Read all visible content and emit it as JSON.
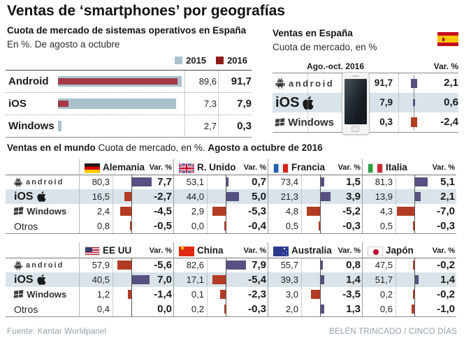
{
  "title": "Ventas de ‘smartphones’ por geografías",
  "colors": {
    "bar_2015": "#aac1cb",
    "bar_2016": "#a43847",
    "legend_2016": "#8f1a1a",
    "var_positive": "#565180",
    "var_negative": "#b23b24",
    "row_highlight": "#d9e3e9"
  },
  "spain_os_chart": {
    "title": "Cuota de mercado de sistemas operativos en España",
    "subtitle": "En %. De agosto a octubre",
    "legend": [
      {
        "label": "2015",
        "color": "#aac1cb"
      },
      {
        "label": "2016",
        "color": "#8f1a1a"
      }
    ],
    "rows": [
      {
        "label": "Android",
        "y2015": 89.6,
        "y2016": 91.7,
        "blue_pct": 100,
        "red_pct": 96.5
      },
      {
        "label": "iOS",
        "y2015": 7.3,
        "y2016": 7.9,
        "blue_pct": 95.5,
        "red_pct": 8.5
      },
      {
        "label": "Windows",
        "y2015": 2.7,
        "y2016": 0.3,
        "blue_pct": 3,
        "red_pct": 0
      }
    ]
  },
  "spain_sales": {
    "title": "Ventas en España",
    "subtitle": "Cuota de mercado, en %",
    "flag": "es",
    "col_period": "Ago.-oct. 2016",
    "col_var": "Var. %",
    "rows": [
      {
        "os": "android",
        "share": 91.7,
        "var": 2.1
      },
      {
        "os": "ios",
        "share": 7.9,
        "var": 0.6
      },
      {
        "os": "windows",
        "share": 0.3,
        "var": -2.4
      }
    ]
  },
  "world": {
    "heading_bold": "Ventas en el mundo",
    "heading_normal": " Cuota de mercado, en %. ",
    "heading_bold2": "Agosto a octubre de 2016",
    "var_label": "Var. %",
    "os_order": [
      "android",
      "ios",
      "windows",
      "otros"
    ],
    "tables": [
      [
        {
          "name": "Alemania",
          "flag": "de",
          "shares": [
            80.3,
            16.5,
            2.4,
            0.8
          ],
          "vars": [
            7.7,
            -2.7,
            -4.5,
            -0.5
          ]
        },
        {
          "name": "R. Unido",
          "flag": "uk",
          "shares": [
            53.1,
            44.0,
            2.9,
            0.0
          ],
          "vars": [
            0.7,
            5.0,
            -5.3,
            -0.4
          ]
        },
        {
          "name": "Francia",
          "flag": "fr",
          "shares": [
            73.4,
            21.3,
            4.8,
            0.5
          ],
          "vars": [
            1.5,
            3.9,
            -5.2,
            -0.3
          ]
        },
        {
          "name": "Italia",
          "flag": "it",
          "shares": [
            81.3,
            13.9,
            4.3,
            0.5
          ],
          "vars": [
            5.1,
            2.1,
            -7.0,
            -0.3
          ]
        }
      ],
      [
        {
          "name": "EE UU",
          "flag": "us",
          "shares": [
            57.9,
            40.5,
            1.2,
            0.4
          ],
          "vars": [
            -5.6,
            7.0,
            -1.4,
            0.0
          ]
        },
        {
          "name": "China",
          "flag": "cn",
          "shares": [
            82.6,
            17.1,
            0.1,
            0.2
          ],
          "vars": [
            7.9,
            -5.4,
            -2.3,
            -0.3
          ]
        },
        {
          "name": "Australia",
          "flag": "au",
          "shares": [
            55.7,
            39.3,
            3.0,
            2.0
          ],
          "vars": [
            0.8,
            1.4,
            -3.5,
            1.3
          ]
        },
        {
          "name": "Japón",
          "flag": "jp",
          "shares": [
            47.5,
            51.7,
            0.2,
            0.6
          ],
          "vars": [
            -0.2,
            1.4,
            -0.2,
            -1.0
          ]
        }
      ]
    ]
  },
  "footer": {
    "source": "Fuente: Kantar Worldpanel",
    "credit": "BELÉN TRINCADO / CINCO DÍAS"
  },
  "chart_data": [
    {
      "type": "bar",
      "orientation": "horizontal",
      "title": "Cuota de mercado de sistemas operativos en España",
      "subtitle": "En %. De agosto a octubre",
      "categories": [
        "Android",
        "iOS",
        "Windows"
      ],
      "series": [
        {
          "name": "2015",
          "values": [
            89.6,
            7.3,
            2.7
          ]
        },
        {
          "name": "2016",
          "values": [
            91.7,
            7.9,
            0.3
          ]
        }
      ],
      "unit": "%",
      "legend_position": "top-right",
      "grid": false
    },
    {
      "type": "table",
      "title": "Ventas en España",
      "subtitle": "Cuota de mercado, en %",
      "columns": [
        "Ago.-oct. 2016",
        "Var. %"
      ],
      "rows": [
        [
          "Android",
          91.7,
          2.1
        ],
        [
          "iOS",
          7.9,
          0.6
        ],
        [
          "Windows",
          0.3,
          -2.4
        ]
      ]
    },
    {
      "type": "table",
      "title": "Ventas en el mundo",
      "subtitle": "Cuota de mercado, en %. Agosto a octubre de 2016",
      "os": [
        "Android",
        "iOS",
        "Windows",
        "Otros"
      ],
      "countries": [
        {
          "name": "Alemania",
          "share": [
            80.3,
            16.5,
            2.4,
            0.8
          ],
          "var": [
            7.7,
            -2.7,
            -4.5,
            -0.5
          ]
        },
        {
          "name": "R. Unido",
          "share": [
            53.1,
            44.0,
            2.9,
            0.0
          ],
          "var": [
            0.7,
            5.0,
            -5.3,
            -0.4
          ]
        },
        {
          "name": "Francia",
          "share": [
            73.4,
            21.3,
            4.8,
            0.5
          ],
          "var": [
            1.5,
            3.9,
            -5.2,
            -0.3
          ]
        },
        {
          "name": "Italia",
          "share": [
            81.3,
            13.9,
            4.3,
            0.5
          ],
          "var": [
            5.1,
            2.1,
            -7.0,
            -0.3
          ]
        },
        {
          "name": "EE UU",
          "share": [
            57.9,
            40.5,
            1.2,
            0.4
          ],
          "var": [
            -5.6,
            7.0,
            -1.4,
            0.0
          ]
        },
        {
          "name": "China",
          "share": [
            82.6,
            17.1,
            0.1,
            0.2
          ],
          "var": [
            7.9,
            -5.4,
            -2.3,
            -0.3
          ]
        },
        {
          "name": "Australia",
          "share": [
            55.7,
            39.3,
            3.0,
            2.0
          ],
          "var": [
            0.8,
            1.4,
            -3.5,
            1.3
          ]
        },
        {
          "name": "Japón",
          "share": [
            47.5,
            51.7,
            0.2,
            0.6
          ],
          "var": [
            -0.2,
            1.4,
            -0.2,
            -1.0
          ]
        }
      ]
    }
  ]
}
